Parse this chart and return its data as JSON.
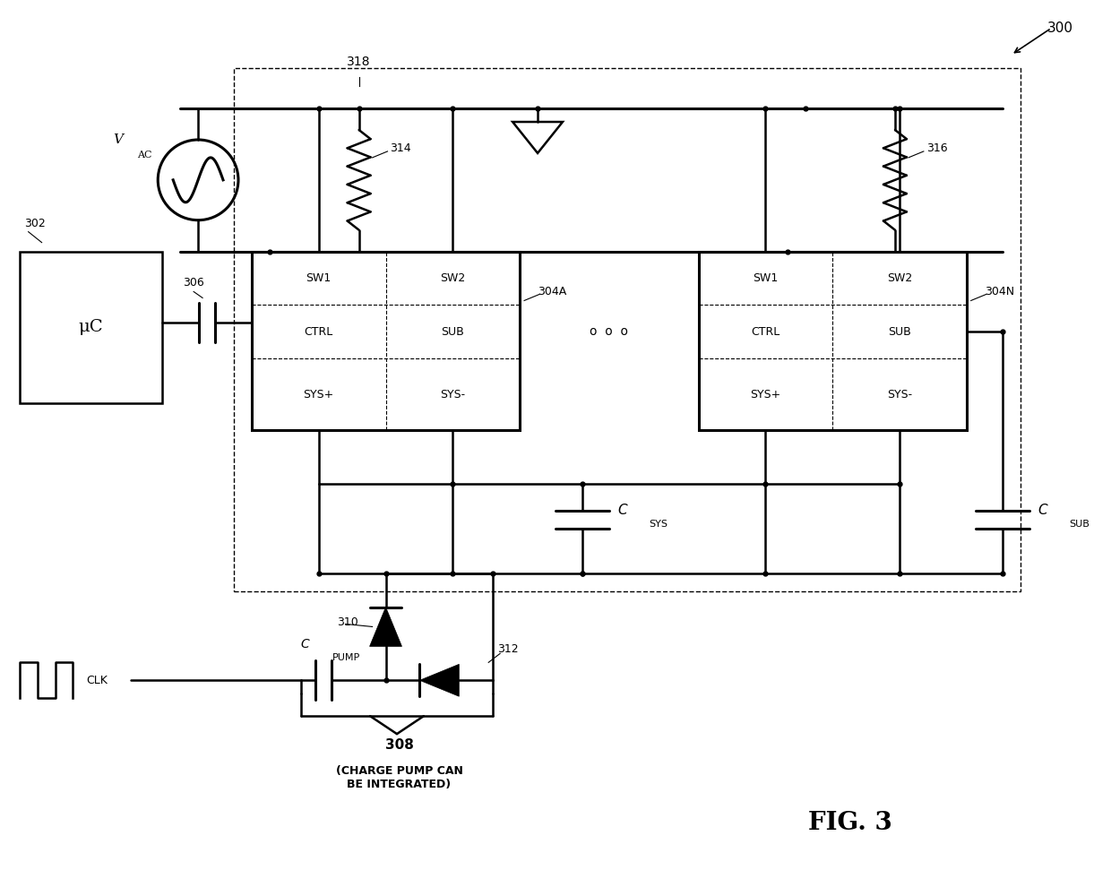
{
  "bg_color": "#ffffff",
  "line_color": "#000000",
  "line_width": 1.8,
  "fig_width": 12.4,
  "fig_height": 10.0,
  "label_uc": "μC",
  "label_csys": "C",
  "label_csys_sub": "SYS",
  "label_csub": "C",
  "label_csub_sub": "SUB",
  "label_cpump": "C",
  "label_cpump_sub": "PUMP",
  "label_clk": "CLK",
  "label_308_text": "(CHARGE PUMP CAN\nBE INTEGRATED)"
}
